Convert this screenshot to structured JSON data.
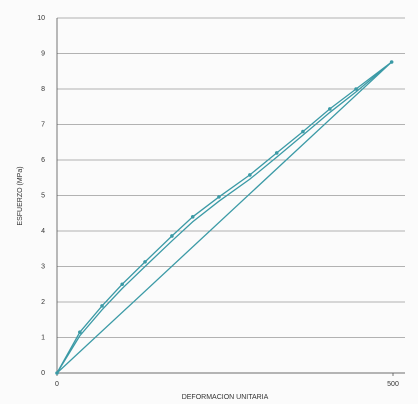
{
  "chart_data": {
    "type": "line",
    "x_label": "DEFORMACION UNITARIA",
    "y_label": "ESFUERZO (MPa)",
    "xlim": [
      0,
      500
    ],
    "xticks": [
      0,
      500
    ],
    "ylim": [
      0,
      10
    ],
    "yticks": [
      0,
      1,
      2,
      3,
      4,
      5,
      6,
      7,
      8,
      9,
      10
    ],
    "grid": true,
    "series": [
      {
        "color": "#3b9aa6",
        "markers": true,
        "x": [
          0,
          34,
          67,
          97,
          131,
          171,
          202,
          241,
          287,
          327,
          366,
          406,
          445,
          498
        ],
        "values": [
          0,
          1.15,
          1.89,
          2.5,
          3.13,
          3.86,
          4.4,
          4.96,
          5.58,
          6.2,
          6.8,
          7.44,
          8.0,
          8.76
        ]
      },
      {
        "color": "#3b9aa6",
        "markers": false,
        "x": [
          0,
          34,
          67,
          97,
          131,
          171,
          202,
          241,
          287,
          327,
          366,
          406,
          445,
          498
        ],
        "values": [
          0,
          1.05,
          1.78,
          2.38,
          3.0,
          3.72,
          4.26,
          4.84,
          5.46,
          6.08,
          6.7,
          7.34,
          7.92,
          8.76
        ]
      },
      {
        "color": "#3b9aa6",
        "markers": false,
        "x": [
          0,
          498
        ],
        "values": [
          0,
          8.76
        ]
      }
    ]
  }
}
